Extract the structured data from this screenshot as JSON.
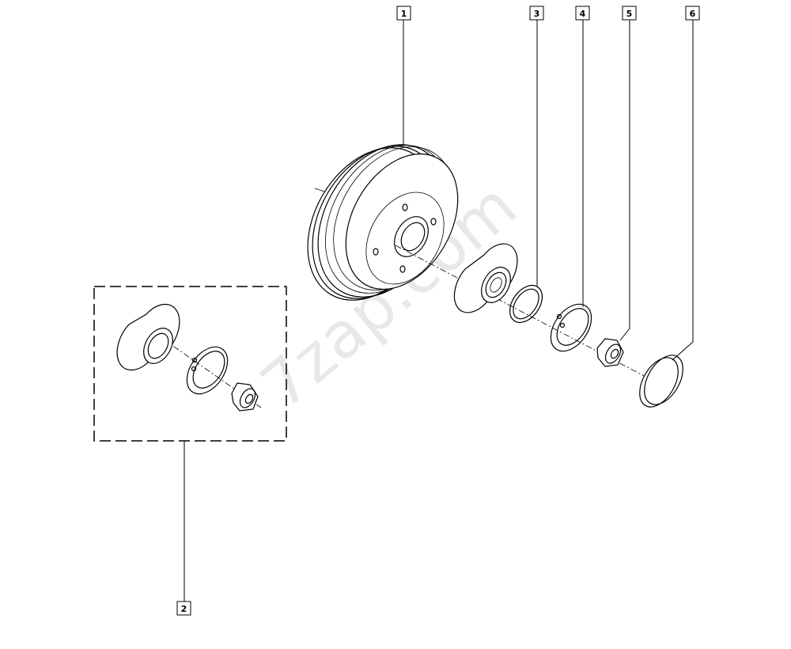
{
  "watermark": "7zap.com",
  "callouts": [
    {
      "id": "1",
      "label": "1"
    },
    {
      "id": "2",
      "label": "2"
    },
    {
      "id": "3",
      "label": "3"
    },
    {
      "id": "4",
      "label": "4"
    },
    {
      "id": "5",
      "label": "5"
    },
    {
      "id": "6",
      "label": "6"
    }
  ]
}
